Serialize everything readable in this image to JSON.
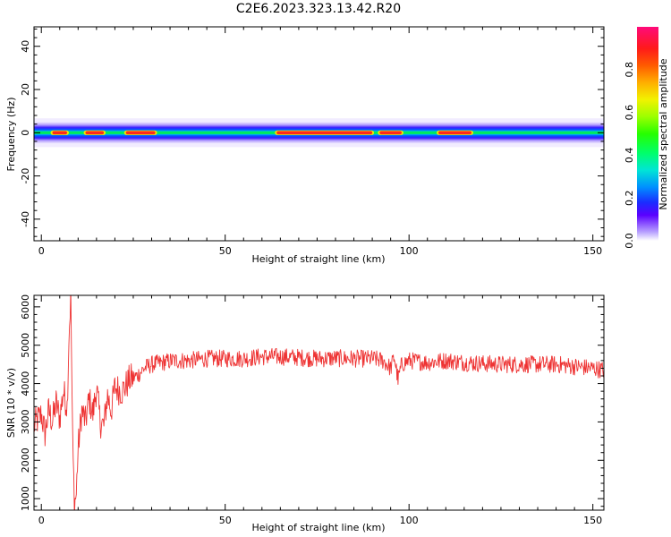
{
  "title": "C2E6.2023.323.13.42.R20",
  "chart_data": [
    {
      "type": "heatmap",
      "name": "spectrogram",
      "xlabel": "Height of straight line (km)",
      "ylabel": "Frequency (Hz)",
      "xlim": [
        -2,
        153
      ],
      "ylim": [
        -50,
        49
      ],
      "xticks": [
        0,
        50,
        100,
        150
      ],
      "yticks": [
        -40,
        -20,
        0,
        20,
        40
      ],
      "band_center_hz": 0,
      "band_halfwidth_hz": 5,
      "colorbar": {
        "label": "Normalized spectral amplitude",
        "range": [
          0,
          1
        ],
        "ticks": [
          0.0,
          0.2,
          0.4,
          0.6,
          0.8
        ],
        "tick_labels": [
          "0.0",
          "0.2",
          "0.4",
          "0.6",
          "0.8"
        ]
      },
      "hot_segments_km": [
        [
          3,
          7
        ],
        [
          12,
          17
        ],
        [
          23,
          31
        ],
        [
          64,
          90
        ],
        [
          92,
          98
        ],
        [
          108,
          117
        ]
      ]
    },
    {
      "type": "line",
      "name": "snr",
      "xlabel": "Height of straight line (km)",
      "ylabel": "SNR (10 * v/v)",
      "xlim": [
        -2,
        153
      ],
      "ylim": [
        700,
        6300
      ],
      "xticks": [
        0,
        50,
        100,
        150
      ],
      "yticks": [
        1000,
        2000,
        3000,
        4000,
        5000,
        6000
      ],
      "color": "#ee3333",
      "series": [
        {
          "name": "SNR",
          "x": [
            -2,
            0,
            1,
            2,
            3,
            4,
            5,
            6,
            7,
            7.5,
            8,
            8.5,
            9,
            9.5,
            10,
            11,
            12,
            13,
            14,
            15,
            16,
            17,
            18,
            19,
            20,
            22,
            24,
            26,
            28,
            30,
            33,
            36,
            40,
            45,
            50,
            55,
            60,
            65,
            70,
            75,
            80,
            85,
            90,
            93,
            95,
            96,
            97,
            98,
            100,
            105,
            110,
            115,
            120,
            125,
            130,
            135,
            140,
            145,
            150,
            153
          ],
          "y": [
            2900,
            3200,
            2700,
            3300,
            3000,
            3500,
            3100,
            3800,
            3400,
            5200,
            6300,
            2500,
            900,
            1100,
            2300,
            3300,
            3000,
            3600,
            3200,
            3900,
            3000,
            2900,
            3700,
            3300,
            3900,
            3800,
            4100,
            4200,
            4400,
            4500,
            4550,
            4600,
            4600,
            4650,
            4650,
            4650,
            4700,
            4700,
            4680,
            4650,
            4660,
            4650,
            4650,
            4600,
            4400,
            4700,
            4100,
            4500,
            4600,
            4550,
            4600,
            4550,
            4520,
            4500,
            4500,
            4500,
            4500,
            4450,
            4400,
            4350
          ],
          "noise_amplitude": 230
        }
      ]
    }
  ]
}
